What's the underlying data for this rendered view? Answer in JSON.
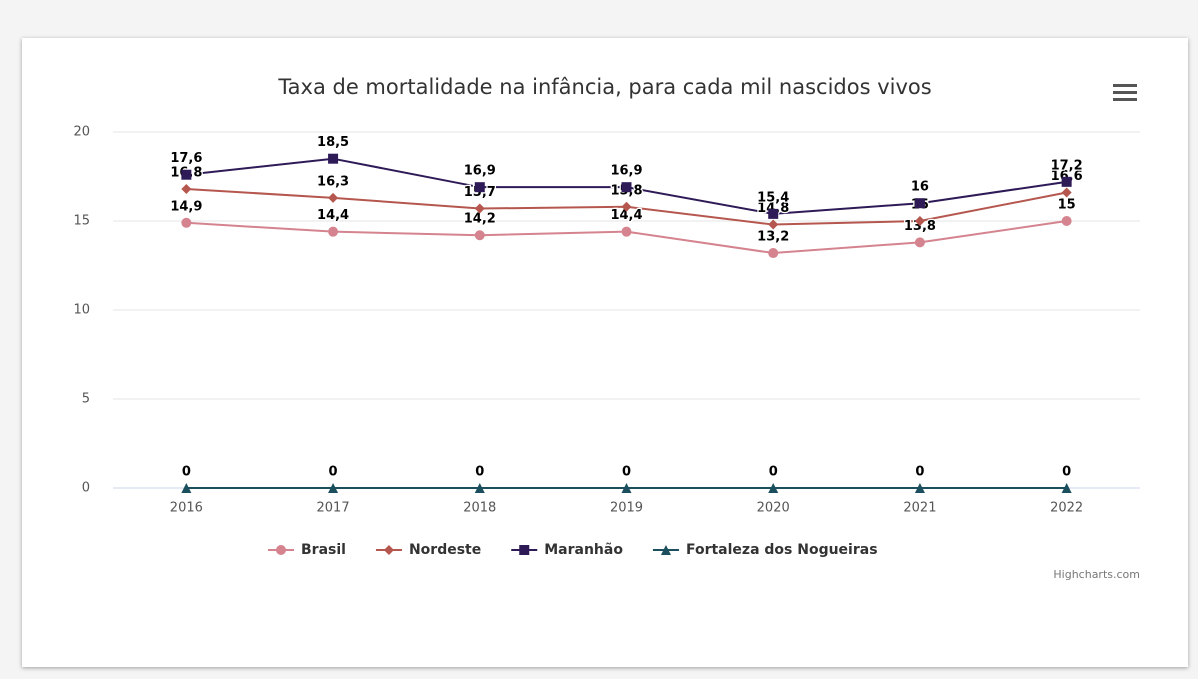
{
  "chart_data": {
    "type": "line",
    "title": "Taxa de mortalidade na infância, para cada mil nascidos vivos",
    "categories": [
      "2016",
      "2017",
      "2018",
      "2019",
      "2020",
      "2021",
      "2022"
    ],
    "series": [
      {
        "name": "Brasil",
        "color": "#d4838f",
        "marker": "circle",
        "values": [
          14.9,
          14.4,
          14.2,
          14.4,
          13.2,
          13.8,
          15
        ],
        "value_labels": [
          "14,9",
          "14,4",
          "14,2",
          "14,4",
          "13,2",
          "13,8",
          "15"
        ]
      },
      {
        "name": "Nordeste",
        "color": "#b5574e",
        "marker": "diamond",
        "values": [
          16.8,
          16.3,
          15.7,
          15.8,
          14.8,
          15,
          16.6
        ],
        "value_labels": [
          "16,8",
          "16,3",
          "15,7",
          "15,8",
          "14,8",
          "15",
          "16,6"
        ]
      },
      {
        "name": "Maranhão",
        "color": "#2e1a57",
        "marker": "square",
        "values": [
          17.6,
          18.5,
          16.9,
          16.9,
          15.4,
          16,
          17.2
        ],
        "value_labels": [
          "17,6",
          "18,5",
          "16,9",
          "16,9",
          "15,4",
          "16",
          "17,2"
        ]
      },
      {
        "name": "Fortaleza dos Nogueiras",
        "color": "#1b4f5e",
        "marker": "triangle",
        "values": [
          0,
          0,
          0,
          0,
          0,
          0,
          0
        ]
      }
    ],
    "ylim": [
      0,
      20
    ],
    "yticks": [
      0,
      5,
      10,
      15,
      20
    ],
    "grid": true,
    "legend": "bottom",
    "credits": "Highcharts.com"
  }
}
